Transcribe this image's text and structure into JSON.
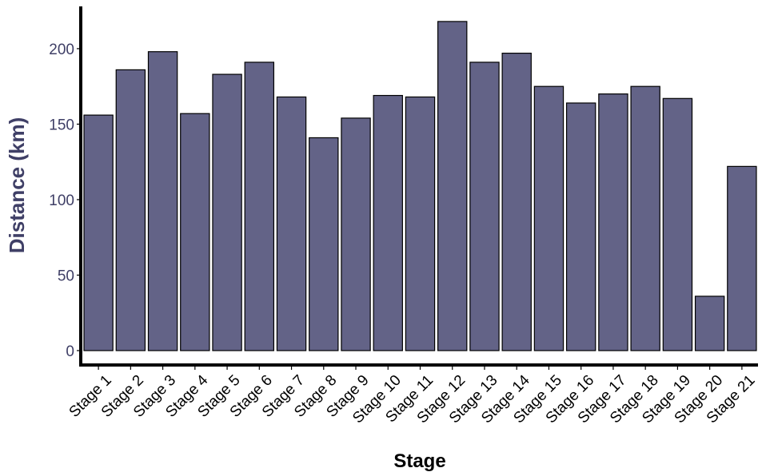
{
  "chart_data": {
    "type": "bar",
    "xlabel": "Stage",
    "ylabel": "Distance (km)",
    "categories": [
      "Stage 1",
      "Stage 2",
      "Stage 3",
      "Stage 4",
      "Stage 5",
      "Stage 6",
      "Stage 7",
      "Stage 8",
      "Stage 9",
      "Stage 10",
      "Stage 11",
      "Stage 12",
      "Stage 13",
      "Stage 14",
      "Stage 15",
      "Stage 16",
      "Stage 17",
      "Stage 18",
      "Stage 19",
      "Stage 20",
      "Stage 21"
    ],
    "values": [
      156,
      186,
      198,
      157,
      183,
      191,
      168,
      141,
      154,
      169,
      168,
      218,
      191,
      197,
      175,
      164,
      170,
      175,
      167,
      36,
      122
    ],
    "yticks": [
      0,
      50,
      100,
      150,
      200
    ],
    "ylim": [
      -9,
      228
    ],
    "grid": false,
    "legend": "none",
    "colors": {
      "bar_fill": "#636387",
      "bar_stroke": "#000000",
      "ylabel_color": "#3f3f66",
      "ytick_color": "#3f3f66",
      "xtick_color": "#000000",
      "xlabel_color": "#000000",
      "axis_line": "#000000"
    }
  }
}
